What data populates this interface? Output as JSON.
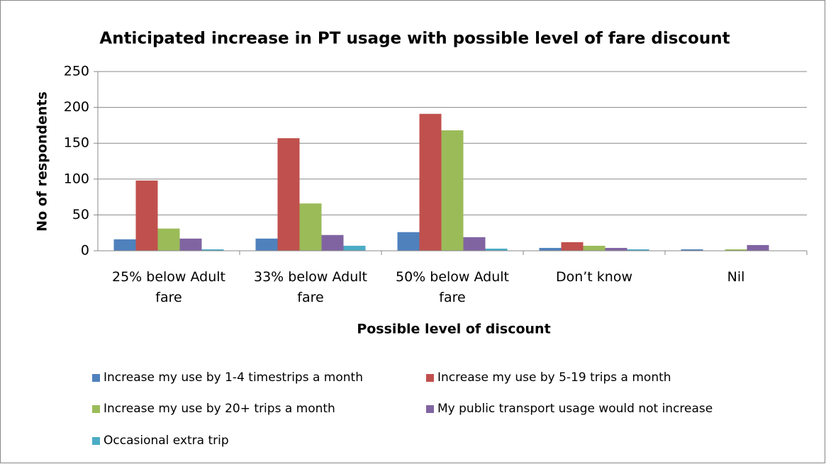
{
  "chart_data": {
    "type": "bar",
    "title": "Anticipated increase in PT usage with possible level of fare discount",
    "x_label": "Possible level of discount",
    "y_label": "No of respondents",
    "categories": [
      "25% below Adult fare",
      "33% below Adult fare",
      "50% below Adult fare",
      "Don’t know",
      "Nil"
    ],
    "series": [
      {
        "name": "Increase my use by 1-4 timestrips a month",
        "color": "#4f81bd",
        "values": [
          16,
          17,
          26,
          4,
          2
        ]
      },
      {
        "name": "Increase my use by 5-19 trips a month",
        "color": "#c0504d",
        "values": [
          98,
          157,
          191,
          12,
          0
        ]
      },
      {
        "name": "Increase my use by 20+ trips a month",
        "color": "#9bbb59",
        "values": [
          31,
          66,
          168,
          7,
          2
        ]
      },
      {
        "name": "My public transport usage would not increase",
        "color": "#8064a2",
        "values": [
          17,
          22,
          19,
          4,
          8
        ]
      },
      {
        "name": "Occasional extra trip",
        "color": "#4bacc6",
        "values": [
          2,
          7,
          3,
          2,
          0
        ]
      }
    ],
    "ylim": [
      0,
      250
    ],
    "yticks": [
      0,
      50,
      100,
      150,
      200,
      250
    ],
    "grid": true
  }
}
